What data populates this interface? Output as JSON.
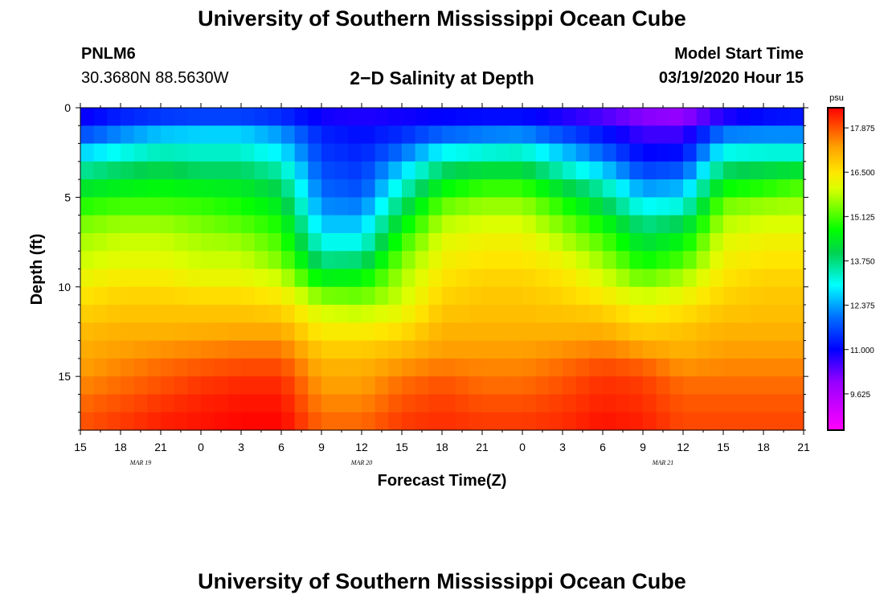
{
  "header": {
    "title": "University of Southern Mississippi Ocean Cube",
    "station_id": "PNLM6",
    "station_coords": "30.3680N 88.5630W",
    "subtitle": "2−D Salinity at Depth",
    "model_start_label": "Model Start Time",
    "model_start_value": "03/19/2020 Hour 15"
  },
  "footer": {
    "title": "University of Southern Mississippi Ocean Cube"
  },
  "chart_data": {
    "type": "heatmap",
    "title": "2−D Salinity at Depth",
    "xlabel": "Forecast Time(Z)",
    "ylabel": "Depth (ft)",
    "x_ticks": [
      "15",
      "18",
      "21",
      "0",
      "3",
      "6",
      "9",
      "12",
      "15",
      "18",
      "21",
      "0",
      "3",
      "6",
      "9",
      "12",
      "15",
      "18",
      "21"
    ],
    "x_date_labels": [
      {
        "label": "MAR 19",
        "tick_index": 1.5
      },
      {
        "label": "MAR 20",
        "tick_index": 7
      },
      {
        "label": "MAR 21",
        "tick_index": 14.5
      }
    ],
    "y_ticks": [
      0,
      5,
      10,
      15
    ],
    "ylim": [
      0,
      18
    ],
    "y_inverted": true,
    "time_hours": [
      0,
      3,
      6,
      9,
      12,
      15,
      18,
      21,
      24,
      27,
      30,
      33,
      36,
      39,
      42,
      45,
      48,
      51,
      54
    ],
    "depth_ft": [
      0,
      1,
      2,
      3,
      4,
      5,
      6,
      7,
      8,
      9,
      10,
      11,
      12,
      13,
      14,
      15,
      16,
      17,
      18
    ],
    "salinity_grid": [
      [
        10.6,
        10.8,
        10.8,
        10.8,
        10.8,
        10.8,
        10.6,
        10.6,
        10.6,
        10.6,
        10.6,
        10.6,
        10.4,
        10.2,
        9.8,
        9.6,
        10.0,
        10.4,
        10.6
      ],
      [
        11.2,
        11.8,
        12.2,
        12.4,
        12.4,
        12.0,
        11.2,
        11.0,
        11.2,
        11.4,
        11.6,
        11.6,
        11.2,
        10.8,
        10.4,
        10.4,
        11.6,
        11.8,
        11.8
      ],
      [
        12.2,
        12.6,
        13.0,
        13.0,
        13.0,
        12.6,
        11.4,
        11.2,
        11.6,
        12.4,
        12.6,
        12.8,
        12.2,
        11.6,
        10.8,
        10.8,
        12.6,
        12.6,
        12.6
      ],
      [
        13.2,
        13.6,
        13.8,
        13.6,
        13.6,
        13.2,
        11.6,
        11.4,
        12.4,
        13.6,
        13.8,
        13.8,
        13.0,
        12.2,
        11.2,
        11.4,
        13.6,
        13.8,
        13.8
      ],
      [
        14.0,
        14.2,
        14.4,
        14.2,
        14.2,
        13.8,
        11.8,
        11.6,
        13.0,
        14.2,
        14.6,
        14.6,
        13.8,
        13.2,
        12.0,
        12.2,
        14.2,
        14.4,
        14.8
      ],
      [
        14.6,
        14.8,
        14.8,
        14.8,
        14.6,
        14.2,
        12.0,
        11.8,
        13.6,
        15.0,
        15.4,
        15.4,
        14.6,
        13.8,
        12.6,
        12.8,
        15.2,
        15.4,
        15.6
      ],
      [
        15.2,
        15.4,
        15.4,
        15.2,
        15.0,
        14.6,
        12.4,
        12.4,
        14.2,
        15.6,
        15.8,
        15.8,
        15.2,
        14.4,
        13.4,
        13.6,
        15.6,
        15.8,
        15.8
      ],
      [
        15.6,
        15.8,
        15.8,
        15.6,
        15.4,
        15.0,
        12.8,
        12.8,
        14.8,
        16.0,
        16.2,
        16.2,
        15.6,
        15.0,
        14.0,
        14.4,
        16.0,
        16.2,
        16.2
      ],
      [
        15.8,
        16.0,
        16.0,
        15.8,
        15.8,
        15.2,
        13.4,
        13.4,
        15.2,
        16.2,
        16.4,
        16.4,
        16.0,
        15.4,
        14.4,
        14.8,
        16.2,
        16.4,
        16.4
      ],
      [
        16.0,
        16.2,
        16.2,
        16.0,
        16.0,
        15.6,
        14.0,
        14.2,
        15.6,
        16.4,
        16.6,
        16.6,
        16.4,
        15.8,
        15.0,
        15.4,
        16.4,
        16.6,
        16.6
      ],
      [
        16.4,
        16.6,
        16.6,
        16.4,
        16.4,
        16.2,
        15.0,
        15.0,
        15.8,
        16.6,
        16.8,
        16.8,
        16.6,
        16.2,
        15.6,
        16.0,
        16.6,
        16.8,
        16.8
      ],
      [
        16.6,
        16.8,
        16.8,
        16.8,
        16.8,
        16.6,
        15.8,
        15.6,
        16.0,
        16.8,
        16.9,
        16.9,
        16.8,
        16.6,
        16.2,
        16.4,
        16.8,
        16.9,
        16.9
      ],
      [
        16.9,
        17.0,
        17.0,
        17.0,
        17.0,
        17.0,
        16.2,
        16.2,
        16.4,
        17.0,
        17.0,
        17.0,
        17.0,
        17.0,
        16.6,
        16.8,
        17.0,
        17.0,
        17.0
      ],
      [
        17.1,
        17.2,
        17.2,
        17.3,
        17.4,
        17.4,
        16.6,
        16.6,
        16.8,
        17.2,
        17.2,
        17.2,
        17.2,
        17.3,
        17.0,
        17.0,
        17.2,
        17.2,
        17.2
      ],
      [
        17.2,
        17.4,
        17.6,
        17.7,
        17.8,
        17.8,
        17.0,
        17.0,
        17.2,
        17.4,
        17.4,
        17.4,
        17.6,
        17.8,
        17.6,
        17.2,
        17.4,
        17.4,
        17.4
      ],
      [
        17.4,
        17.6,
        17.8,
        18.0,
        18.1,
        18.1,
        17.2,
        17.2,
        17.6,
        17.8,
        17.6,
        17.6,
        17.8,
        18.1,
        18.0,
        17.6,
        17.6,
        17.6,
        17.6
      ],
      [
        17.6,
        17.8,
        18.0,
        18.2,
        18.3,
        18.3,
        17.4,
        17.4,
        17.8,
        18.0,
        17.8,
        17.8,
        18.0,
        18.2,
        18.1,
        17.8,
        17.8,
        17.8,
        17.8
      ],
      [
        17.8,
        18.0,
        18.2,
        18.3,
        18.4,
        18.4,
        17.6,
        17.6,
        18.0,
        18.1,
        18.0,
        18.0,
        18.1,
        18.3,
        18.2,
        17.9,
        17.9,
        17.9,
        17.9
      ],
      [
        17.9,
        18.1,
        18.3,
        18.4,
        18.5,
        18.5,
        17.8,
        17.8,
        18.1,
        18.2,
        18.1,
        18.1,
        18.2,
        18.4,
        18.3,
        18.0,
        18.0,
        18.0,
        18.0
      ]
    ],
    "colorbar": {
      "unit": "psu",
      "min": 8.5,
      "max": 18.5,
      "ticks": [
        "17.875",
        "16.500",
        "15.125",
        "13.750",
        "12.375",
        "11.000",
        "9.625"
      ]
    }
  }
}
